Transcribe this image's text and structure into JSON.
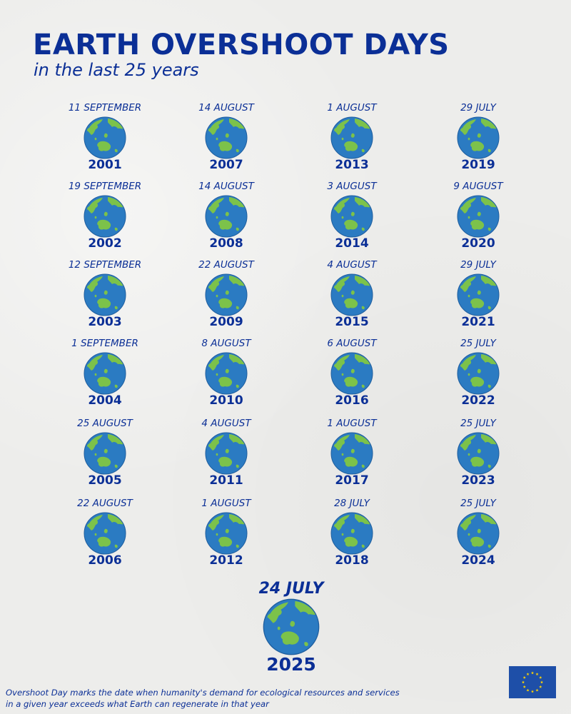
{
  "header": {
    "title": "EARTH OVERSHOOT DAYS",
    "subtitle": "in the last 25 years"
  },
  "columns": [
    [
      {
        "date": "11 SEPTEMBER",
        "year": "2001"
      },
      {
        "date": "19 SEPTEMBER",
        "year": "2002"
      },
      {
        "date": "12 SEPTEMBER",
        "year": "2003"
      },
      {
        "date": "1 SEPTEMBER",
        "year": "2004"
      },
      {
        "date": "25 AUGUST",
        "year": "2005"
      },
      {
        "date": "22 AUGUST",
        "year": "2006"
      }
    ],
    [
      {
        "date": "14 AUGUST",
        "year": "2007"
      },
      {
        "date": "14 AUGUST",
        "year": "2008"
      },
      {
        "date": "22 AUGUST",
        "year": "2009"
      },
      {
        "date": "8 AUGUST",
        "year": "2010"
      },
      {
        "date": "4 AUGUST",
        "year": "2011"
      },
      {
        "date": "1 AUGUST",
        "year": "2012"
      }
    ],
    [
      {
        "date": "1 AUGUST",
        "year": "2013"
      },
      {
        "date": "3 AUGUST",
        "year": "2014"
      },
      {
        "date": "4 AUGUST",
        "year": "2015"
      },
      {
        "date": "6 AUGUST",
        "year": "2016"
      },
      {
        "date": "1 AUGUST",
        "year": "2017"
      },
      {
        "date": "28 JULY",
        "year": "2018"
      }
    ],
    [
      {
        "date": "29 JULY",
        "year": "2019"
      },
      {
        "date": "9 AUGUST",
        "year": "2020"
      },
      {
        "date": "29 JULY",
        "year": "2021"
      },
      {
        "date": "25 JULY",
        "year": "2022"
      },
      {
        "date": "25 JULY",
        "year": "2023"
      },
      {
        "date": "25 JULY",
        "year": "2024"
      }
    ]
  ],
  "current": {
    "date": "24 JULY",
    "year": "2025"
  },
  "footnote": "Overshoot Day marks the date when humanity's demand for ecological resources and services in a given year exceeds what Earth can regenerate in that year",
  "colors": {
    "text": "#0b2f96",
    "ocean": "#2b7bc2",
    "land": "#7cc24a",
    "eu_blue": "#1e4fa8",
    "eu_star": "#ffd500"
  }
}
